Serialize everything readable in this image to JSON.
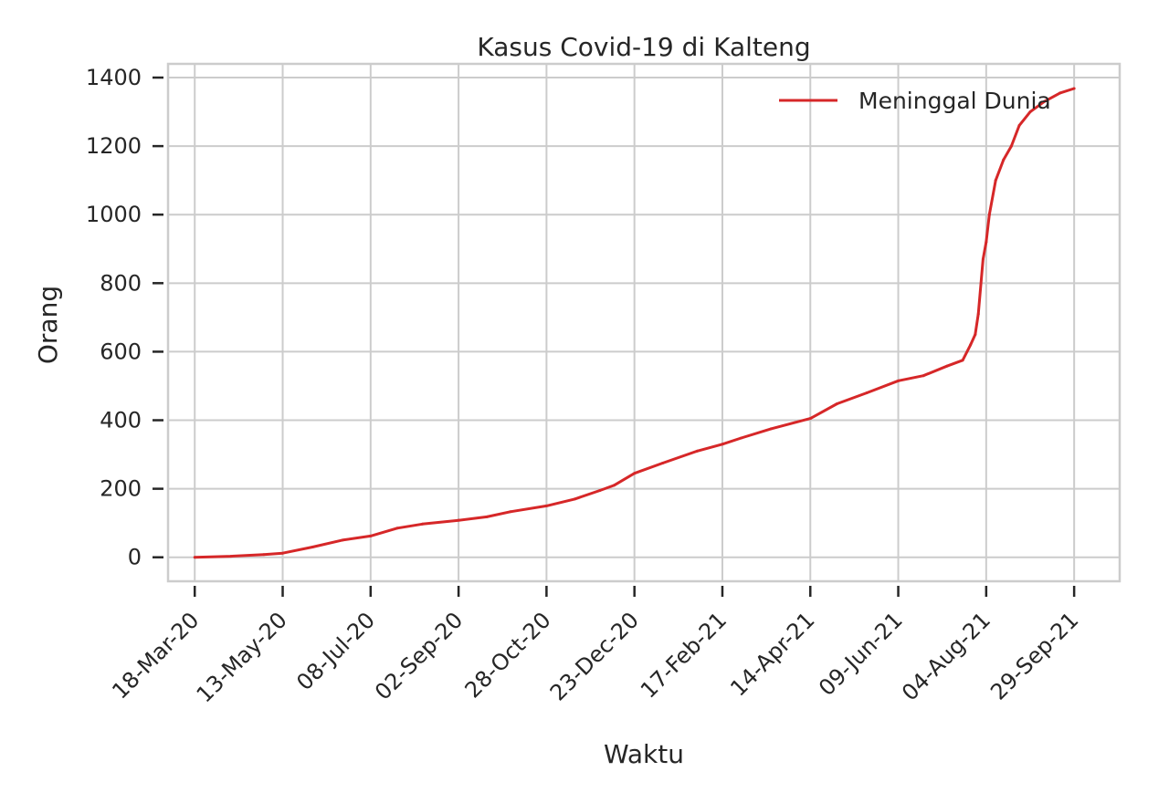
{
  "chart_data": {
    "type": "line",
    "title": "Kasus Covid-19 di Kalteng",
    "xlabel": "Waktu",
    "ylabel": "Orang",
    "x_ticks": [
      "18-Mar-20",
      "13-May-20",
      "08-Jul-20",
      "02-Sep-20",
      "28-Oct-20",
      "23-Dec-20",
      "17-Feb-21",
      "14-Apr-21",
      "09-Jun-21",
      "04-Aug-21",
      "29-Sep-21"
    ],
    "y_ticks": [
      0,
      200,
      400,
      600,
      800,
      1000,
      1200,
      1400
    ],
    "xlim": [
      "2020-03-01",
      "2021-10-28"
    ],
    "ylim": [
      -70,
      1440
    ],
    "grid": true,
    "legend_position": "top-right",
    "series": [
      {
        "name": "Meninggal Dunia",
        "color": "#d62728",
        "x": [
          "2020-03-18",
          "2020-04-10",
          "2020-05-01",
          "2020-05-13",
          "2020-06-01",
          "2020-06-20",
          "2020-07-08",
          "2020-07-25",
          "2020-08-10",
          "2020-09-02",
          "2020-09-20",
          "2020-10-05",
          "2020-10-28",
          "2020-11-15",
          "2020-12-01",
          "2020-12-10",
          "2020-12-23",
          "2021-01-10",
          "2021-02-01",
          "2021-02-17",
          "2021-03-01",
          "2021-03-20",
          "2021-04-14",
          "2021-05-01",
          "2021-05-20",
          "2021-06-09",
          "2021-06-25",
          "2021-07-10",
          "2021-07-20",
          "2021-07-25",
          "2021-07-28",
          "2021-07-30",
          "2021-08-02",
          "2021-08-04",
          "2021-08-06",
          "2021-08-10",
          "2021-08-15",
          "2021-08-20",
          "2021-08-25",
          "2021-09-01",
          "2021-09-10",
          "2021-09-20",
          "2021-09-29"
        ],
        "y": [
          0,
          3,
          8,
          12,
          30,
          50,
          62,
          85,
          97,
          108,
          118,
          133,
          150,
          170,
          195,
          210,
          245,
          275,
          310,
          330,
          348,
          375,
          405,
          448,
          480,
          515,
          530,
          558,
          575,
          620,
          650,
          710,
          870,
          920,
          1000,
          1100,
          1160,
          1200,
          1260,
          1300,
          1330,
          1355,
          1368
        ]
      }
    ]
  }
}
